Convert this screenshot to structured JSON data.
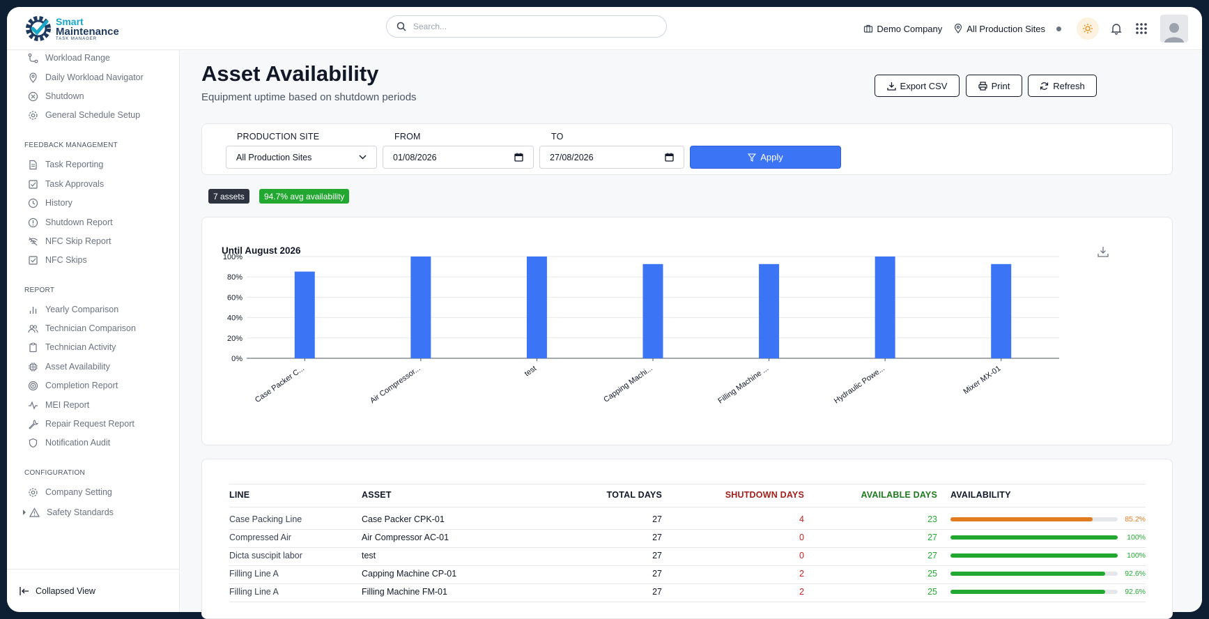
{
  "app": {
    "logo": {
      "line1": "Smart",
      "line2": "Maintenance",
      "line3": "TASK MANAGER"
    },
    "search_placeholder": "Search...",
    "company": "Demo Company",
    "site": "All Production Sites"
  },
  "sidebar": {
    "top_items": [
      "Workload Range",
      "Daily Workload Navigator",
      "Shutdown",
      "General Schedule Setup"
    ],
    "feedback_title": "FEEDBACK MANAGEMENT",
    "feedback_items": [
      "Task Reporting",
      "Task Approvals",
      "History",
      "Shutdown Report",
      "NFC Skip Report",
      "NFC Skips"
    ],
    "report_title": "REPORT",
    "report_items": [
      "Yearly Comparison",
      "Technician Comparison",
      "Technician Activity",
      "Asset Availability",
      "Completion Report",
      "MEI Report",
      "Repair Request Report",
      "Notification Audit"
    ],
    "config_title": "CONFIGURATION",
    "config_items": [
      "Company Setting",
      "Safety Standards"
    ],
    "collapse_label": "Collapsed View"
  },
  "page": {
    "title": "Asset Availability",
    "subtitle": "Equipment uptime based on shutdown periods",
    "export_label": "Export CSV",
    "print_label": "Print",
    "refresh_label": "Refresh"
  },
  "filters": {
    "site_label": "PRODUCTION SITE",
    "site_value": "All Production Sites",
    "from_label": "FROM",
    "from_value": "01/08/2026",
    "to_label": "TO",
    "to_value": "27/08/2026",
    "apply_label": "Apply"
  },
  "badges": {
    "assets": "7 assets",
    "avg": "94.7% avg availability"
  },
  "chart_data": {
    "type": "bar",
    "title": "Until August 2026",
    "categories": [
      "Case Packer C...",
      "Air Compressor...",
      "test",
      "Capping Machi...",
      "Filling Machine ...",
      "Hydraulic Powe...",
      "Mixer MX-01"
    ],
    "values": [
      85.2,
      100,
      100,
      92.6,
      92.6,
      100,
      92.6
    ],
    "ylim": [
      0,
      100
    ],
    "yticks": [
      "0%",
      "20%",
      "40%",
      "60%",
      "80%",
      "100%"
    ],
    "grid": true,
    "color": "#3b74f5"
  },
  "table": {
    "headers": {
      "line": "LINE",
      "asset": "ASSET",
      "total": "TOTAL DAYS",
      "shutdown": "SHUTDOWN DAYS",
      "available": "AVAILABLE DAYS",
      "availability": "AVAILABILITY"
    },
    "rows": [
      {
        "line": "Case Packing Line",
        "asset": "Case Packer CPK-01",
        "total": "27",
        "shutdown": "4",
        "available": "23",
        "pct_label": "85.2%",
        "pct": 85.2,
        "color": "#e07b1f"
      },
      {
        "line": "Compressed Air",
        "asset": "Air Compressor AC-01",
        "total": "27",
        "shutdown": "0",
        "available": "27",
        "pct_label": "100%",
        "pct": 100,
        "color": "#22a831"
      },
      {
        "line": "Dicta suscipit labor",
        "asset": "test",
        "total": "27",
        "shutdown": "0",
        "available": "27",
        "pct_label": "100%",
        "pct": 100,
        "color": "#22a831"
      },
      {
        "line": "Filling Line A",
        "asset": "Capping Machine CP-01",
        "total": "27",
        "shutdown": "2",
        "available": "25",
        "pct_label": "92.6%",
        "pct": 92.6,
        "color": "#22a831"
      },
      {
        "line": "Filling Line A",
        "asset": "Filling Machine FM-01",
        "total": "27",
        "shutdown": "2",
        "available": "25",
        "pct_label": "92.6%",
        "pct": 92.6,
        "color": "#22a831"
      }
    ]
  },
  "colors": {
    "shutdown": "#c81e1e",
    "available": "#22a831",
    "header_shutdown": "#a3201a",
    "header_available": "#1f7a1f"
  }
}
